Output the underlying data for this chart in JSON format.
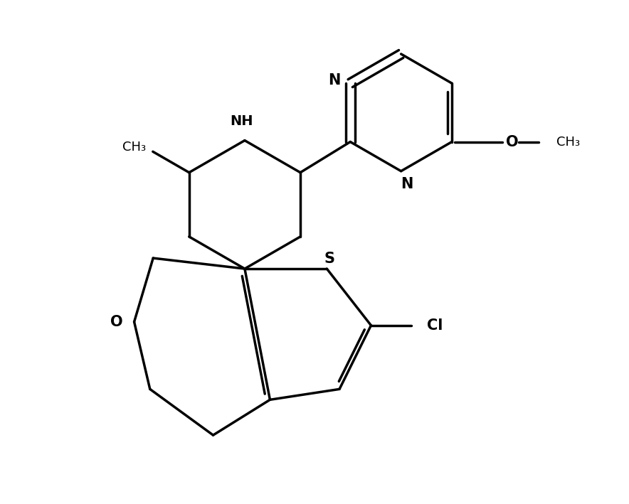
{
  "background_color": "#ffffff",
  "line_color": "#000000",
  "line_width": 2.5,
  "figsize": [
    8.84,
    7.09
  ],
  "dpi": 100,
  "xlim": [
    0,
    10
  ],
  "ylim": [
    0,
    9
  ]
}
